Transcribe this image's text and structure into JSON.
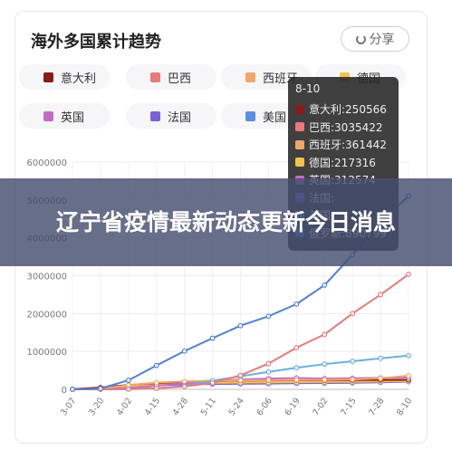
{
  "card_title": "海外多国累计趋势",
  "share_label": "分享",
  "legend": [
    {
      "name": "意大利",
      "color": "#8b1a1a"
    },
    {
      "name": "巴西",
      "color": "#e87a7a"
    },
    {
      "name": "西班牙",
      "color": "#f0a868"
    },
    {
      "name": "德国",
      "color": "#f6c24a"
    },
    {
      "name": "英国",
      "color": "#c26cc8"
    },
    {
      "name": "法国",
      "color": "#7a62d4"
    },
    {
      "name": "美国",
      "color": "#5b8ee6"
    }
  ],
  "tooltip": {
    "date": "8-10",
    "rows": [
      {
        "label": "意大利:250566",
        "color": "#8b1a1a"
      },
      {
        "label": "巴西:3035422",
        "color": "#e87a7a"
      },
      {
        "label": "西班牙:361442",
        "color": "#f0a868"
      },
      {
        "label": "德国:217316",
        "color": "#f6c24a"
      },
      {
        "label": "英国:312574",
        "color": "#c26cc8"
      },
      {
        "label": "法国:",
        "color": "#7a62d4"
      },
      {
        "label": "美国:",
        "color": "#5b8ee6"
      },
      {
        "label": "俄罗斯:890799",
        "color": "#4a86e8"
      }
    ]
  },
  "banner_text": "辽宁省疫情最新动态更新今日消息",
  "chart_data": {
    "type": "line",
    "title": "海外多国累计趋势",
    "categories": [
      "3-07",
      "3-20",
      "4-02",
      "4-15",
      "4-28",
      "5-11",
      "5-24",
      "6-06",
      "6-19",
      "7-02",
      "7-15",
      "7-28",
      "8-10"
    ],
    "y_ticks": [
      "0",
      "1000000",
      "2000000",
      "3000000",
      "4000000",
      "5000000",
      "6000000"
    ],
    "ylim": [
      0,
      6000000
    ],
    "grid": true,
    "series": [
      {
        "name": "美国",
        "color": "#4f80d6",
        "values": [
          300,
          20000,
          240000,
          630000,
          1010000,
          1350000,
          1680000,
          1930000,
          2250000,
          2750000,
          3550000,
          4400000,
          5100000
        ]
      },
      {
        "name": "巴西",
        "color": "#e87a7a",
        "values": [
          20,
          600,
          8000,
          26000,
          74000,
          170000,
          370000,
          680000,
          1100000,
          1450000,
          2000000,
          2500000,
          3035422
        ]
      },
      {
        "name": "俄罗斯",
        "color": "#6ab0e0",
        "values": [
          20,
          300,
          4000,
          25000,
          93000,
          230000,
          345000,
          460000,
          570000,
          665000,
          740000,
          820000,
          890799
        ]
      },
      {
        "name": "西班牙",
        "color": "#f0a868",
        "values": [
          500,
          20000,
          110000,
          180000,
          210000,
          228000,
          236000,
          241000,
          246000,
          251000,
          260000,
          290000,
          361442
        ]
      },
      {
        "name": "英国",
        "color": "#c26cc8",
        "values": [
          200,
          4000,
          34000,
          94000,
          161000,
          220000,
          260000,
          285000,
          300000,
          284000,
          292000,
          301000,
          312574
        ]
      },
      {
        "name": "意大利",
        "color": "#8b1a1a",
        "values": [
          5800,
          47000,
          115000,
          165000,
          200000,
          220000,
          230000,
          235000,
          238000,
          241000,
          244000,
          247000,
          250566
        ]
      },
      {
        "name": "德国",
        "color": "#f6c24a",
        "values": [
          800,
          18000,
          80000,
          135000,
          160000,
          172000,
          180000,
          185000,
          191000,
          196000,
          201000,
          208000,
          217316
        ]
      },
      {
        "name": "法国",
        "color": "#7a62d4",
        "values": [
          1000,
          12000,
          60000,
          105000,
          130000,
          140000,
          145000,
          152000,
          160000,
          166000,
          172000,
          185000,
          202000
        ]
      }
    ]
  }
}
